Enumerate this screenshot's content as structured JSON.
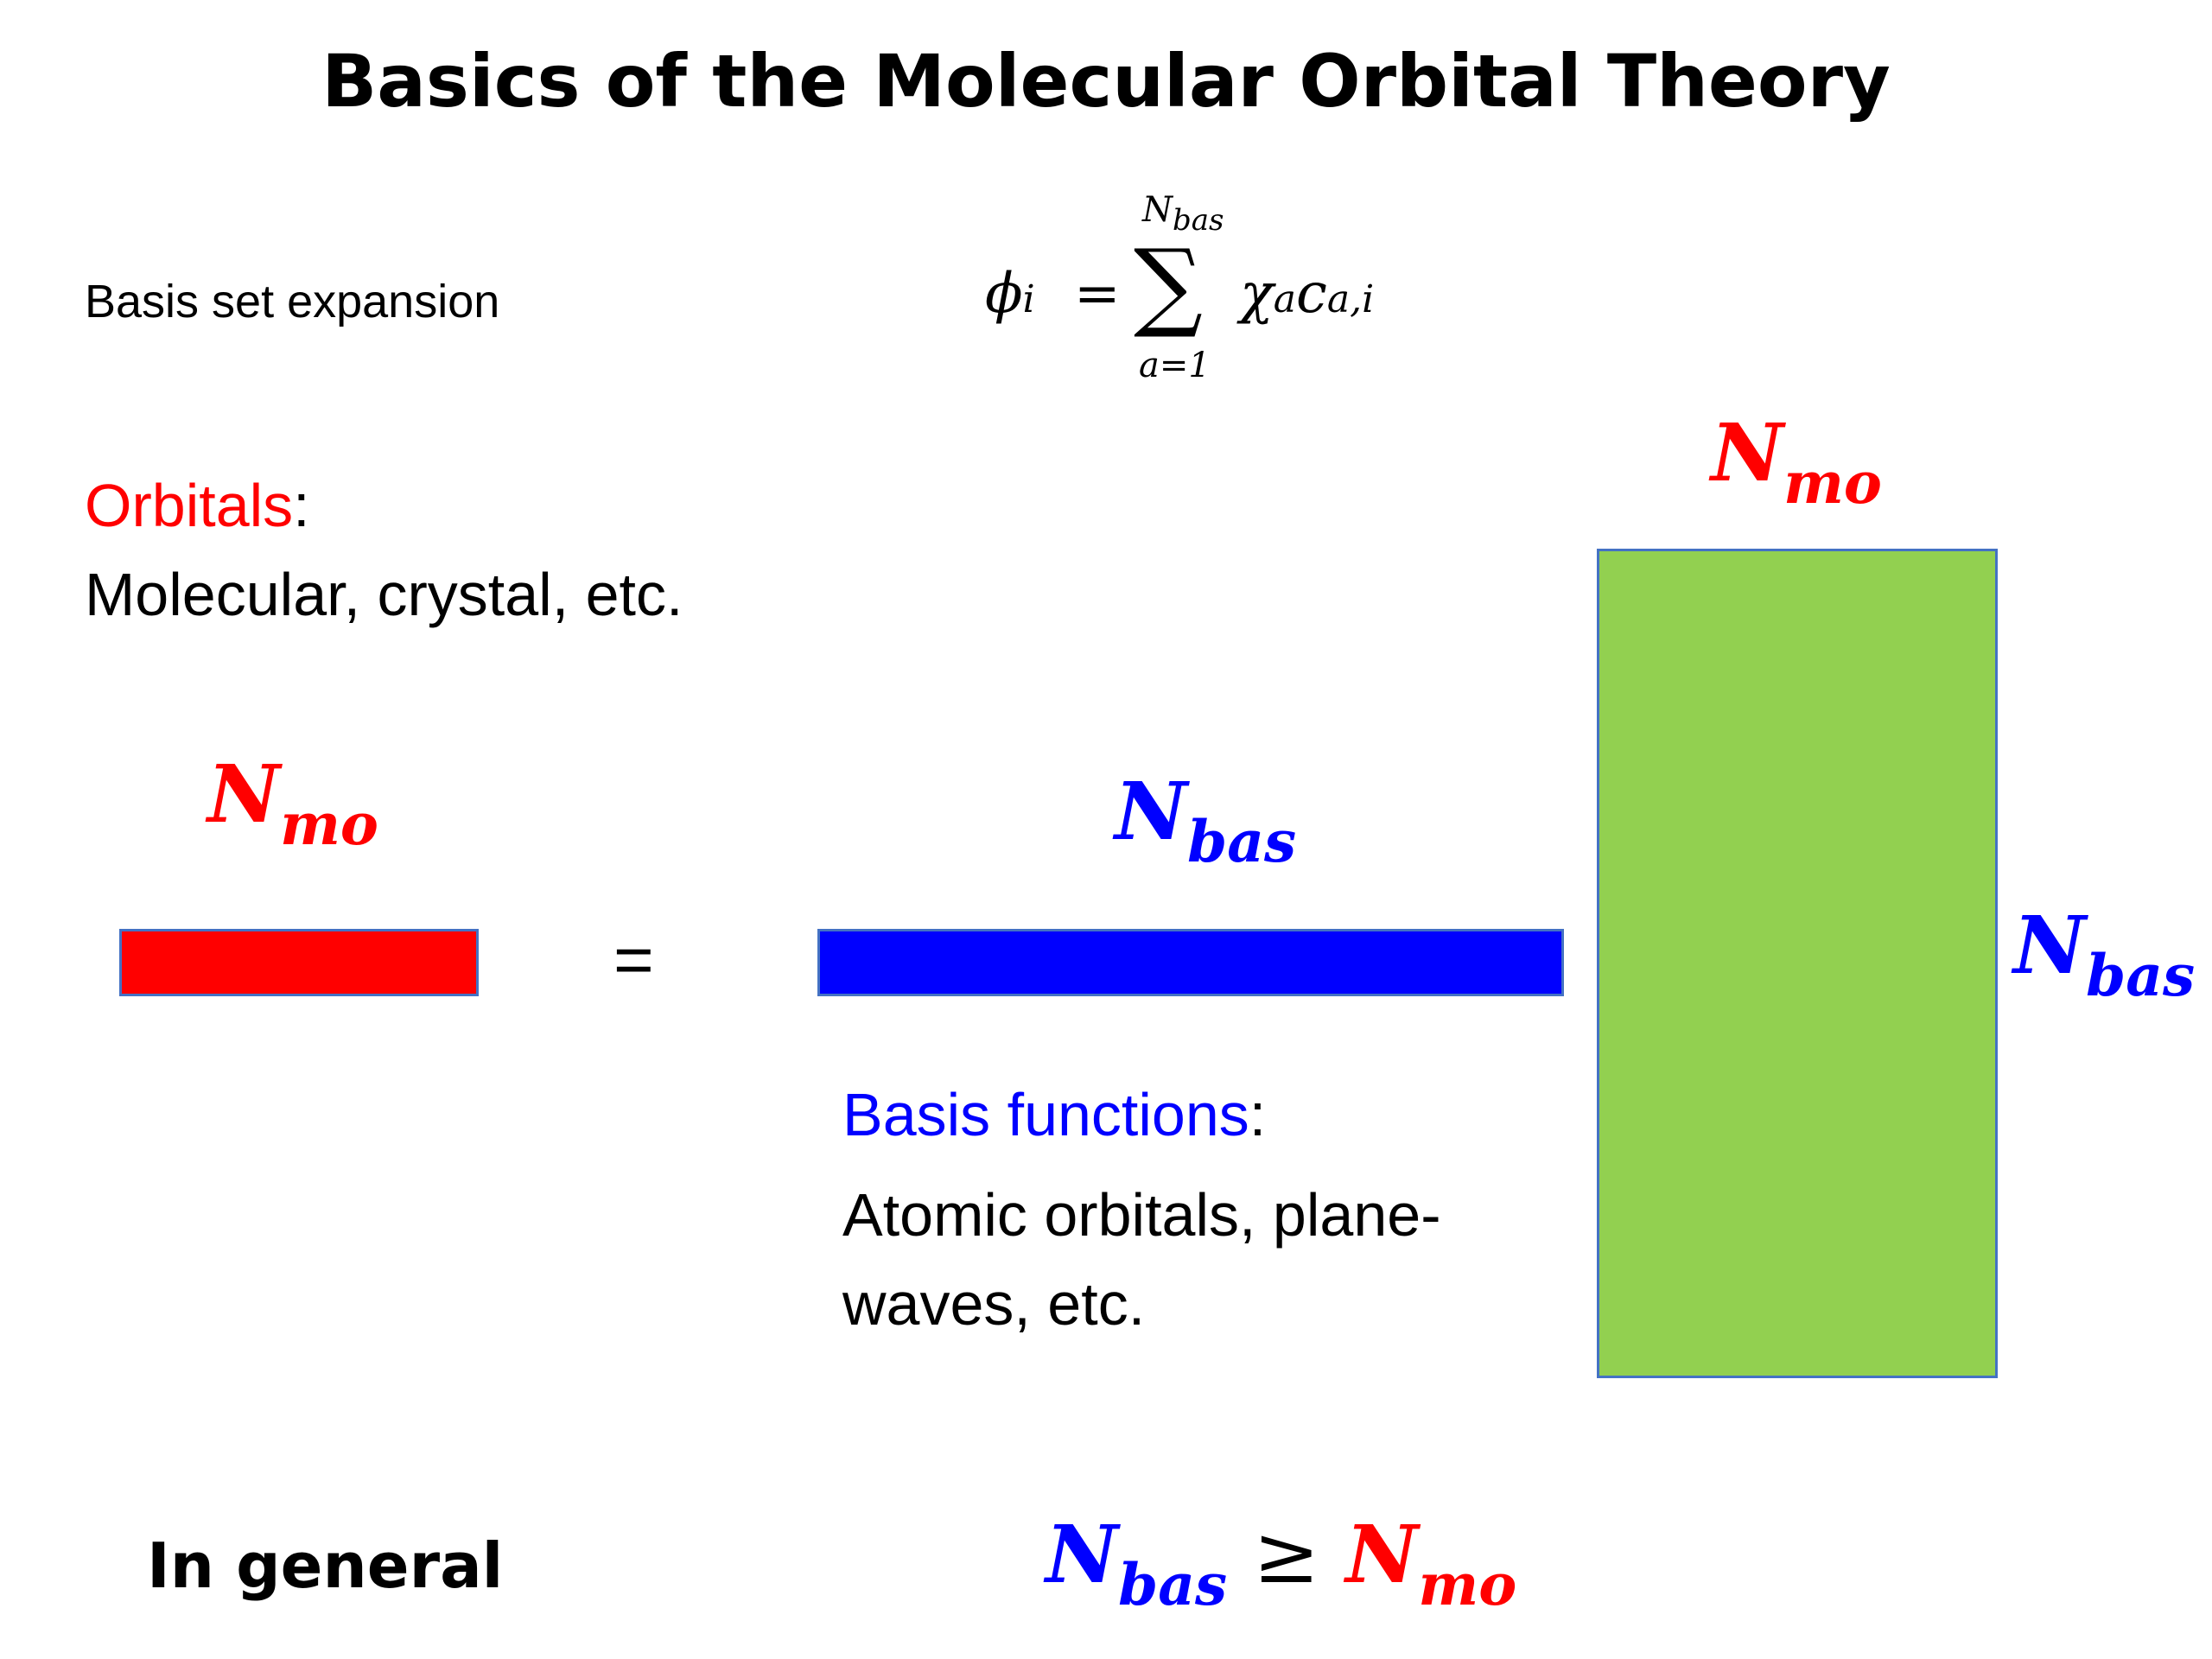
{
  "title": "Basics of the Molecular Orbital Theory",
  "basis_label": "Basis set expansion",
  "formula": {
    "lhs_symbol": "ϕ",
    "lhs_index": "i",
    "equals": "=",
    "sum_sign": "∑",
    "upper_limit_symbol": "N",
    "upper_limit_sub": "bas",
    "lower_limit": "a=1",
    "term_chi": "χ",
    "term_chi_sub": "a",
    "term_c": "c",
    "term_c_sub": "a,i"
  },
  "orbitals": {
    "heading": "Orbitals",
    "colon": ":",
    "description": "Molecular, crystal, etc."
  },
  "basis_functions": {
    "heading": "Basis functions",
    "colon": ":",
    "description": "Atomic orbitals, plane-waves, etc."
  },
  "symbols": {
    "n": "N",
    "mo_sub": "mo",
    "bas_sub": "bas"
  },
  "equals_sign": "=",
  "in_general_label": "In general",
  "inequality_sign": "≥",
  "colors": {
    "red": "#ff0000",
    "blue": "#0000ff",
    "green": "#92d050",
    "box_border": "#4472c4"
  }
}
